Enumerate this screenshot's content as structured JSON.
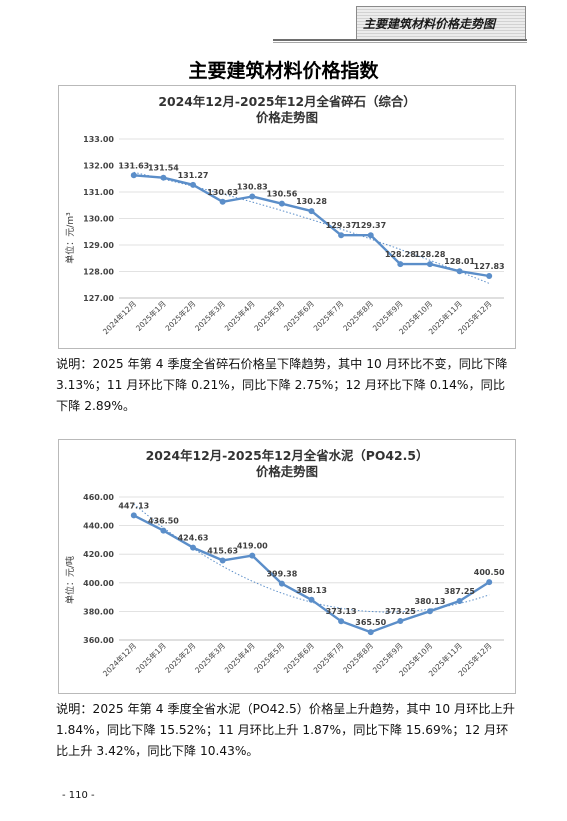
{
  "header": {
    "tag": "主要建筑材料价格走势图"
  },
  "page_title": "主要建筑材料价格指数",
  "charts": {
    "gravel": {
      "title_line1": "2024年12月-2025年12月全省碎石（综合）",
      "title_line2": "价格走势图",
      "ylabel": "单位：元/m³",
      "description": "说明：2025 年第 4 季度全省碎石价格呈下降趋势，其中 10 月环比不变，同比下降 3.13%；11 月环比下降 0.21%，同比下降 2.75%；12 月环比下降 0.14%，同比下降 2.89%。"
    },
    "cement": {
      "title_line1": "2024年12月-2025年12月全省水泥（PO42.5）",
      "title_line2": "价格走势图",
      "ylabel": "单位：元/吨",
      "description": "说明：2025 年第 4 季度全省水泥（PO42.5）价格呈上升趋势，其中 10 月环比上升 1.84%，同比下降 15.52%；11 月环比上升 1.87%，同比下降 15.69%；12 月环比上升 3.42%，同比下降 10.43%。"
    }
  },
  "chart_data": [
    {
      "type": "line",
      "title": "2024年12月-2025年12月全省碎石（综合）价格走势图",
      "ylabel": "单位：元/m³",
      "categories": [
        "2024年12月",
        "2025年1月",
        "2025年2月",
        "2025年3月",
        "2025年4月",
        "2025年5月",
        "2025年6月",
        "2025年7月",
        "2025年8月",
        "2025年9月",
        "2025年10月",
        "2025年11月",
        "2025年12月"
      ],
      "yticks": [
        "133.00",
        "132.00",
        "131.00",
        "130.00",
        "129.00",
        "128.00",
        "127.00"
      ],
      "values": [
        131.63,
        131.54,
        131.27,
        130.63,
        130.83,
        130.56,
        130.28,
        129.37,
        129.37,
        128.28,
        128.28,
        128.01,
        127.83
      ],
      "labels": [
        "131.63",
        "131.54",
        "131.27",
        "130.63",
        "130.83",
        "130.56",
        "130.28",
        "129.37",
        "129.37",
        "128.28",
        "128.28",
        "128.01",
        "127.83"
      ],
      "ylim": [
        127,
        133
      ],
      "trendline": "polynomial",
      "color": "#5b8ec9"
    },
    {
      "type": "line",
      "title": "2024年12月-2025年12月全省水泥（PO42.5）价格走势图",
      "ylabel": "单位：元/吨",
      "categories": [
        "2024年12月",
        "2025年1月",
        "2025年2月",
        "2025年3月",
        "2025年4月",
        "2025年5月",
        "2025年6月",
        "2025年7月",
        "2025年8月",
        "2025年9月",
        "2025年10月",
        "2025年11月",
        "2025年12月"
      ],
      "yticks": [
        "460.00",
        "440.00",
        "420.00",
        "400.00",
        "380.00",
        "360.00"
      ],
      "values": [
        447.13,
        436.5,
        424.63,
        415.63,
        419.0,
        399.38,
        388.13,
        373.13,
        365.5,
        373.25,
        380.13,
        387.25,
        400.5
      ],
      "labels": [
        "447.13",
        "436.50",
        "424.63",
        "415.63",
        "419.00",
        "399.38",
        "388.13",
        "373.13",
        "365.50",
        "373.25",
        "380.13",
        "387.25",
        "400.50"
      ],
      "ylim": [
        360,
        460
      ],
      "trendline": "polynomial",
      "color": "#5b8ec9"
    }
  ],
  "footer": {
    "page_number": "- 110 -"
  }
}
